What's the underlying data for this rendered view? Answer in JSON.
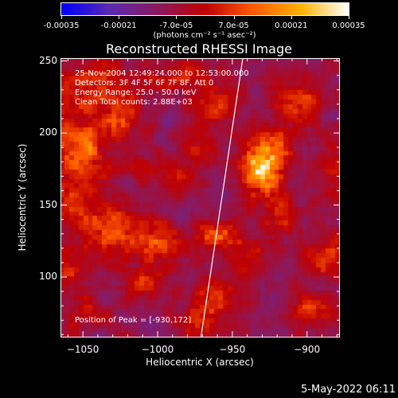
{
  "colorbar": {
    "stops": [
      "#0000ff",
      "#5a2ab0",
      "#8a1a60",
      "#c00000",
      "#ff5a00",
      "#ffb000",
      "#ffffff"
    ],
    "tick_labels": [
      "-0.00035",
      "-0.00021",
      "-7.0e-05",
      "7.0e-05",
      "0.00021",
      "0.00035"
    ],
    "unit_label": "(photons cm⁻² s⁻¹ asec⁻²)"
  },
  "annotations": {
    "time": "25-Nov-2004 12:49:24.000 to 12:53:00.000",
    "detectors": "Detectors: 3F 4F 5F 6F 7F 8F, Att 0",
    "energy": "Energy Range: 25.0 - 50.0 keV",
    "method": "Clean      Total counts: 2.88E+03",
    "peak": "Position of Peak = [-930,172]"
  },
  "footer": {
    "date": "5-May-2022 06:11"
  },
  "chart_data": {
    "type": "heatmap",
    "title": "Reconstructed RHESSI Image",
    "xlabel": "Heliocentric X (arcsec)",
    "ylabel": "Heliocentric Y (arcsec)",
    "xlim": [
      -1065,
      -878
    ],
    "ylim": [
      58,
      252
    ],
    "xticks": [
      -1050,
      -1000,
      -950,
      -900
    ],
    "yticks": [
      100,
      150,
      200,
      250
    ],
    "clim": [
      -0.00035,
      0.00035
    ],
    "grid_resolution": [
      60,
      60
    ],
    "limb_line": [
      [
        -971,
        58
      ],
      [
        -943,
        252
      ]
    ],
    "peak": {
      "x": -930,
      "y": 172
    },
    "blobs": [
      {
        "x": -930,
        "y": 176,
        "sx": 10,
        "sy": 14,
        "value": 0.00035
      },
      {
        "x": -958,
        "y": 128,
        "sx": 10,
        "sy": 8,
        "value": 0.00018
      },
      {
        "x": -1052,
        "y": 188,
        "sx": 14,
        "sy": 16,
        "value": 0.00022
      },
      {
        "x": -1040,
        "y": 232,
        "sx": 18,
        "sy": 12,
        "value": 0.00016
      },
      {
        "x": -1025,
        "y": 208,
        "sx": 8,
        "sy": 8,
        "value": 0.00016
      },
      {
        "x": -1032,
        "y": 133,
        "sx": 14,
        "sy": 12,
        "value": 0.00018
      },
      {
        "x": -1000,
        "y": 122,
        "sx": 12,
        "sy": 10,
        "value": 0.00016
      },
      {
        "x": -962,
        "y": 85,
        "sx": 10,
        "sy": 10,
        "value": 0.00015
      },
      {
        "x": -1010,
        "y": 95,
        "sx": 8,
        "sy": 8,
        "value": 0.00013
      },
      {
        "x": -886,
        "y": 112,
        "sx": 8,
        "sy": 10,
        "value": 0.00015
      },
      {
        "x": -896,
        "y": 78,
        "sx": 12,
        "sy": 8,
        "value": 0.00014
      },
      {
        "x": -905,
        "y": 220,
        "sx": 12,
        "sy": 12,
        "value": 0.00014
      },
      {
        "x": -960,
        "y": 222,
        "sx": 10,
        "sy": 12,
        "value": 0.00014
      },
      {
        "x": -1058,
        "y": 150,
        "sx": 9,
        "sy": 9,
        "value": 0.00012
      },
      {
        "x": -880,
        "y": 175,
        "sx": 8,
        "sy": 12,
        "value": 0.00012
      },
      {
        "x": -1045,
        "y": 75,
        "sx": 10,
        "sy": 8,
        "value": 0.0001
      },
      {
        "x": -920,
        "y": 140,
        "sx": 10,
        "sy": 10,
        "value": 0.0001
      },
      {
        "x": -985,
        "y": 238,
        "sx": 12,
        "sy": 8,
        "value": 0.00012
      },
      {
        "x": -990,
        "y": 170,
        "sx": 9,
        "sy": 9,
        "value": 9e-05
      },
      {
        "x": -940,
        "y": 110,
        "sx": 8,
        "sy": 8,
        "value": 0.0001
      },
      {
        "x": -1058,
        "y": 105,
        "sx": 8,
        "sy": 12,
        "value": 0.0001
      },
      {
        "x": -915,
        "y": 195,
        "sx": 8,
        "sy": 8,
        "value": 9e-05
      },
      {
        "x": -1015,
        "y": 175,
        "sx": 8,
        "sy": 8,
        "value": 9e-05
      },
      {
        "x": -970,
        "y": 190,
        "sx": 8,
        "sy": 10,
        "value": 0.00011
      },
      {
        "x": -975,
        "y": 68,
        "sx": 8,
        "sy": 8,
        "value": 9e-05
      }
    ],
    "background": {
      "low": -0.00022,
      "high": 3e-05
    }
  }
}
